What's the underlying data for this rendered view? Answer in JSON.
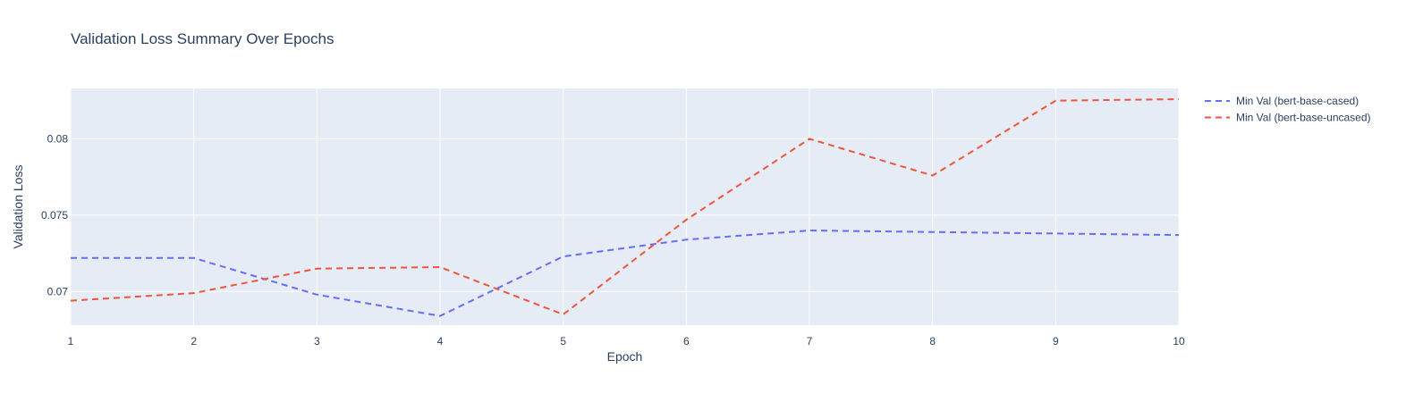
{
  "colors": {
    "plot_background": "#E5ECF6",
    "gridline": "#ffffff",
    "text": "#2a3f5f",
    "series_cased": "#636efa",
    "series_uncased": "#EF553B"
  },
  "chart_data": {
    "type": "line",
    "title": "Validation Loss Summary Over Epochs",
    "xlabel": "Epoch",
    "ylabel": "Validation Loss",
    "xlim": [
      1,
      10
    ],
    "ylim": [
      0.0678,
      0.0833
    ],
    "x_ticks": [
      1,
      2,
      3,
      4,
      5,
      6,
      7,
      8,
      9,
      10
    ],
    "y_ticks": [
      0.07,
      0.075,
      0.08
    ],
    "y_tick_labels": [
      "0.07",
      "0.075",
      "0.08"
    ],
    "grid": true,
    "line_style": "dashed",
    "legend_position": "top-right outside plot",
    "x": [
      1,
      2,
      3,
      4,
      5,
      6,
      7,
      8,
      9,
      10
    ],
    "series": [
      {
        "name": "Min Val (bert-base-cased)",
        "color": "#636efa",
        "values": [
          0.0722,
          0.0722,
          0.0698,
          0.0684,
          0.0723,
          0.0734,
          0.074,
          0.0739,
          0.0738,
          0.0737
        ]
      },
      {
        "name": "Min Val (bert-base-uncased)",
        "color": "#EF553B",
        "values": [
          0.0694,
          0.0699,
          0.0715,
          0.0716,
          0.0685,
          0.0747,
          0.08,
          0.0776,
          0.0825,
          0.0826
        ]
      }
    ]
  }
}
